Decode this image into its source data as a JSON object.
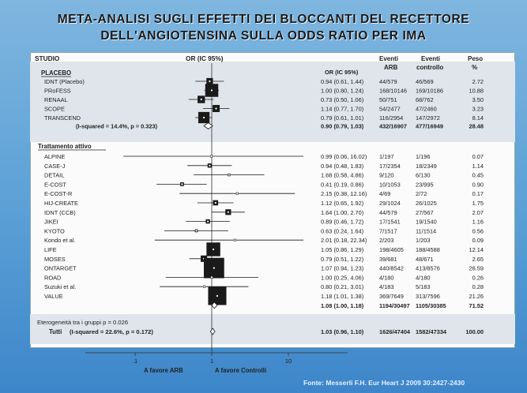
{
  "title_line1": "META-ANALISI SUGLI EFFETTI DEI BLOCCANTI DEL RECETTORE",
  "title_line2": "DELL'ANGIOTENSINA SULLA ODDS RATIO PER IMA",
  "header": {
    "study": "STUDIO",
    "or_ci": "OR (IC 95%)",
    "or_ci_col": "OR (IC 95%)",
    "events_arb": "Eventi ARB",
    "events_ctrl": "Eventi controllo",
    "weight": "Peso %"
  },
  "source": "Fonte: Messerli F.H. Eur Heart J 2009 30:2427-2430",
  "colors": {
    "marker": "#1a1a1a",
    "bg_top": "#7fb6df",
    "bg_bottom": "#3d86c9"
  },
  "chart_data": {
    "type": "forest",
    "x_scale": "log",
    "x_ticks": [
      ".1",
      "1",
      "10"
    ],
    "x_tick_values": [
      0.1,
      1,
      10
    ],
    "xlim": [
      0.025,
      40
    ],
    "xlabel_left": "A favore ARB",
    "xlabel_right": "A favore Controlli",
    "groups": [
      {
        "name": "PLACEBO",
        "studies": [
          {
            "name": "IDNT (Placebo)",
            "or": 0.94,
            "lo": 0.61,
            "hi": 1.44,
            "or_text": "0.94 (0.61, 1.44)",
            "arb": "44/579",
            "ctrl": "46/569",
            "weight": "2.72"
          },
          {
            "name": "PRoFESS",
            "or": 1.0,
            "lo": 0.8,
            "hi": 1.24,
            "or_text": "1.00 (0.80, 1.24)",
            "arb": "168/10146",
            "ctrl": "169/10186",
            "weight": "10.88"
          },
          {
            "name": "RENAAL",
            "or": 0.73,
            "lo": 0.5,
            "hi": 1.06,
            "or_text": "0.73 (0.50, 1.06)",
            "arb": "50/751",
            "ctrl": "68/762",
            "weight": "3.50"
          },
          {
            "name": "SCOPE",
            "or": 1.14,
            "lo": 0.77,
            "hi": 1.7,
            "or_text": "1.14 (0.77, 1.70)",
            "arb": "54/2477",
            "ctrl": "47/2460",
            "weight": "3.23"
          },
          {
            "name": "TRANSCEND",
            "or": 0.79,
            "lo": 0.61,
            "hi": 1.01,
            "or_text": "0.79 (0.61, 1.01)",
            "arb": "116/2954",
            "ctrl": "147/2972",
            "weight": "8.14"
          }
        ],
        "subtotal": {
          "label": "(I-squared = 14.4%, p = 0.323)",
          "or": 0.9,
          "lo": 0.79,
          "hi": 1.03,
          "or_text": "0.90 (0.79, 1.03)",
          "arb": "432/16907",
          "ctrl": "477/16949",
          "weight": "28.48"
        }
      },
      {
        "name": "Trattamento attivo",
        "studies": [
          {
            "name": "ALPINE",
            "or": 0.99,
            "lo": 0.06,
            "hi": 16.02,
            "or_text": "0.99 (0.06, 16.02)",
            "arb": "1/197",
            "ctrl": "1/196",
            "weight": "0.07"
          },
          {
            "name": "CASE-J",
            "or": 0.94,
            "lo": 0.48,
            "hi": 1.83,
            "or_text": "0.94 (0.48, 1.83)",
            "arb": "17/2354",
            "ctrl": "18/2349",
            "weight": "1.14"
          },
          {
            "name": "DETAIL",
            "or": 1.68,
            "lo": 0.58,
            "hi": 4.86,
            "or_text": "1.68 (0.58, 4.86)",
            "arb": "9/120",
            "ctrl": "6/130",
            "weight": "0.45"
          },
          {
            "name": "E-COST",
            "or": 0.41,
            "lo": 0.19,
            "hi": 0.86,
            "or_text": "0.41 (0.19, 0.86)",
            "arb": "10/1053",
            "ctrl": "23/995",
            "weight": "0.90"
          },
          {
            "name": "E-COST-R",
            "or": 2.15,
            "lo": 0.38,
            "hi": 12.16,
            "or_text": "2.15 (0.38, 12.16)",
            "arb": "4/69",
            "ctrl": "2/72",
            "weight": "0.17"
          },
          {
            "name": "HIJ-CREATE",
            "or": 1.12,
            "lo": 0.65,
            "hi": 1.92,
            "or_text": "1.12 (0.65, 1.92)",
            "arb": "29/1024",
            "ctrl": "26/1025",
            "weight": "1.75"
          },
          {
            "name": "IDNT (CCB)",
            "or": 1.64,
            "lo": 1.0,
            "hi": 2.7,
            "or_text": "1.64 (1.00, 2.70)",
            "arb": "44/579",
            "ctrl": "27/567",
            "weight": "2.07"
          },
          {
            "name": "JIKEI",
            "or": 0.89,
            "lo": 0.46,
            "hi": 1.72,
            "or_text": "0.89 (0.46, 1.72)",
            "arb": "17/1541",
            "ctrl": "19/1540",
            "weight": "1.16"
          },
          {
            "name": "KYOTO",
            "or": 0.63,
            "lo": 0.24,
            "hi": 1.64,
            "or_text": "0.63 (0.24, 1.64)",
            "arb": "7/1517",
            "ctrl": "11/1514",
            "weight": "0.56"
          },
          {
            "name": "Kondo et al.",
            "or": 2.01,
            "lo": 0.18,
            "hi": 22.34,
            "or_text": "2.01 (0.18, 22.34)",
            "arb": "2/203",
            "ctrl": "1/203",
            "weight": "0.09"
          },
          {
            "name": "LIFE",
            "or": 1.05,
            "lo": 0.86,
            "hi": 1.29,
            "or_text": "1.05 (0.86, 1.29)",
            "arb": "198/4605",
            "ctrl": "188/4588",
            "weight": "12.14"
          },
          {
            "name": "MOSES",
            "or": 0.79,
            "lo": 0.51,
            "hi": 1.22,
            "or_text": "0.79 (0.51, 1.22)",
            "arb": "39/681",
            "ctrl": "48/671",
            "weight": "2.65"
          },
          {
            "name": "ONTARGET",
            "or": 1.07,
            "lo": 0.94,
            "hi": 1.23,
            "or_text": "1.07 (0.94, 1.23)",
            "arb": "440/8542",
            "ctrl": "413/8576",
            "weight": "26.59"
          },
          {
            "name": "ROAD",
            "or": 1.0,
            "lo": 0.25,
            "hi": 4.06,
            "or_text": "1.00 (0.25, 4.06)",
            "arb": "4/180",
            "ctrl": "4/180",
            "weight": "0.26"
          },
          {
            "name": "Suzuki et al.",
            "or": 0.8,
            "lo": 0.21,
            "hi": 3.01,
            "or_text": "0.80 (0.21, 3.01)",
            "arb": "4/183",
            "ctrl": "5/183",
            "weight": "0.28"
          },
          {
            "name": "VALUE",
            "or": 1.18,
            "lo": 1.01,
            "hi": 1.38,
            "or_text": "1.18 (1.01, 1.38)",
            "arb": "369/7649",
            "ctrl": "313/7596",
            "weight": "21.26"
          }
        ],
        "subtotal": {
          "label": "",
          "or": 1.08,
          "lo": 1.0,
          "hi": 1.18,
          "or_text": "1.08 (1.00, 1.18)",
          "arb": "1194/30497",
          "ctrl": "1105/30385",
          "weight": "71.52"
        }
      }
    ],
    "heterogeneity": "Eterogeneità tra i gruppi    p = 0.026",
    "overall": {
      "label_bold": "Tutti",
      "label": "(I-squared = 22.6%, p = 0.172)",
      "or": 1.03,
      "lo": 0.96,
      "hi": 1.1,
      "or_text": "1.03 (0.96, 1.10)",
      "arb": "1626/47404",
      "ctrl": "1582/47334",
      "weight": "100.00"
    }
  }
}
